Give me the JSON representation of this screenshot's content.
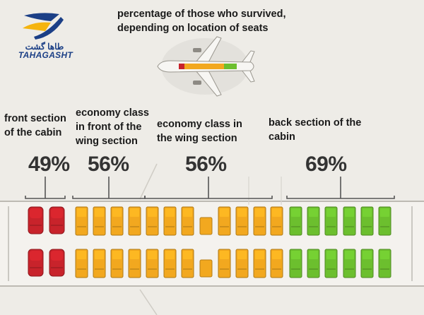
{
  "title": {
    "line1": "percentage of those who survived,",
    "line2": "depending on location of seats"
  },
  "logo": {
    "name_fa": "طاها گشت",
    "name_en": "TAHAGASHT",
    "icon": "airplane-swoosh-logo"
  },
  "sections": [
    {
      "id": "front",
      "label": "front section\nof the cabin",
      "percent": "49%",
      "color": "#c8232b",
      "columns": 2
    },
    {
      "id": "economy-front",
      "label": "economy class\nin front of the\nwing section",
      "percent": "56%",
      "color": "#f2a81f",
      "columns": 4
    },
    {
      "id": "economy-wing",
      "label": "economy class in\nthe wing section",
      "percent": "56%",
      "color": "#f2a81f",
      "columns": 8
    },
    {
      "id": "back",
      "label": "back section of the\ncabin",
      "percent": "69%",
      "color": "#6cbf2e",
      "columns": 6
    }
  ],
  "colors": {
    "background": "#eeece7",
    "fuselage": "#f4f2ee",
    "outline": "#bdbab3",
    "bracket": "#555555",
    "logo_blue": "#1b3f86",
    "logo_yellow": "#f5b40e"
  }
}
